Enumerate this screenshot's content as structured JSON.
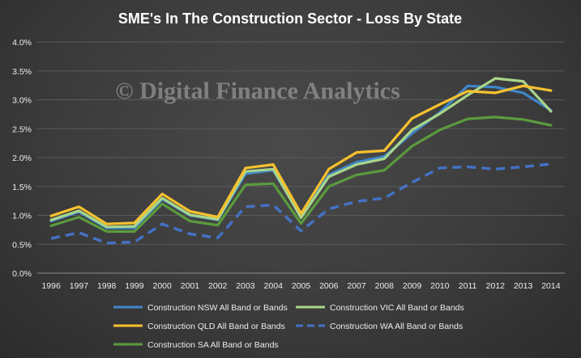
{
  "chart_data": {
    "type": "line",
    "title": "SME's In The Construction Sector - Loss By State",
    "watermark": "© Digital Finance Analytics",
    "xlabel": "",
    "ylabel": "",
    "x": [
      "1996",
      "1997",
      "1998",
      "1999",
      "2000",
      "2001",
      "2002",
      "2003",
      "2004",
      "2005",
      "2006",
      "2007",
      "2008",
      "2009",
      "2010",
      "2011",
      "2012",
      "2013",
      "2014"
    ],
    "ylim": [
      0,
      4
    ],
    "yticks": [
      "0.0%",
      "0.5%",
      "1.0%",
      "1.5%",
      "2.0%",
      "2.5%",
      "3.0%",
      "3.5%",
      "4.0%"
    ],
    "grid": true,
    "legend_position": "bottom",
    "series": [
      {
        "name": "Construction NSW All Band or Bands",
        "color": "#3f86c8",
        "dash": false,
        "values": [
          0.9,
          1.06,
          0.78,
          0.78,
          1.28,
          1.0,
          0.92,
          1.72,
          1.78,
          0.97,
          1.7,
          1.92,
          2.02,
          2.42,
          2.78,
          3.24,
          3.22,
          3.12,
          2.82
        ]
      },
      {
        "name": "Construction VIC All Band or Bands",
        "color": "#a9d68a",
        "dash": false,
        "values": [
          0.92,
          1.08,
          0.8,
          0.81,
          1.3,
          1.01,
          0.93,
          1.76,
          1.8,
          0.96,
          1.67,
          1.88,
          1.98,
          2.48,
          2.76,
          3.08,
          3.37,
          3.32,
          2.8
        ]
      },
      {
        "name": "Construction QLD All Band or Bands",
        "color": "#f7c12e",
        "dash": false,
        "values": [
          0.99,
          1.15,
          0.85,
          0.87,
          1.37,
          1.07,
          0.97,
          1.82,
          1.88,
          1.03,
          1.8,
          2.09,
          2.12,
          2.68,
          2.92,
          3.15,
          3.12,
          3.24,
          3.16
        ]
      },
      {
        "name": "Construction WA All Band or Bands",
        "color": "#4472c4",
        "dash": true,
        "values": [
          0.6,
          0.7,
          0.52,
          0.54,
          0.85,
          0.68,
          0.61,
          1.15,
          1.18,
          0.73,
          1.11,
          1.24,
          1.3,
          1.57,
          1.82,
          1.84,
          1.8,
          1.84,
          1.89
        ]
      },
      {
        "name": "Construction SA All Band or Bands",
        "color": "#5b9b3e",
        "dash": false,
        "values": [
          0.82,
          0.97,
          0.72,
          0.72,
          1.2,
          0.9,
          0.83,
          1.53,
          1.55,
          0.86,
          1.5,
          1.7,
          1.78,
          2.2,
          2.48,
          2.67,
          2.7,
          2.66,
          2.56
        ]
      }
    ]
  }
}
